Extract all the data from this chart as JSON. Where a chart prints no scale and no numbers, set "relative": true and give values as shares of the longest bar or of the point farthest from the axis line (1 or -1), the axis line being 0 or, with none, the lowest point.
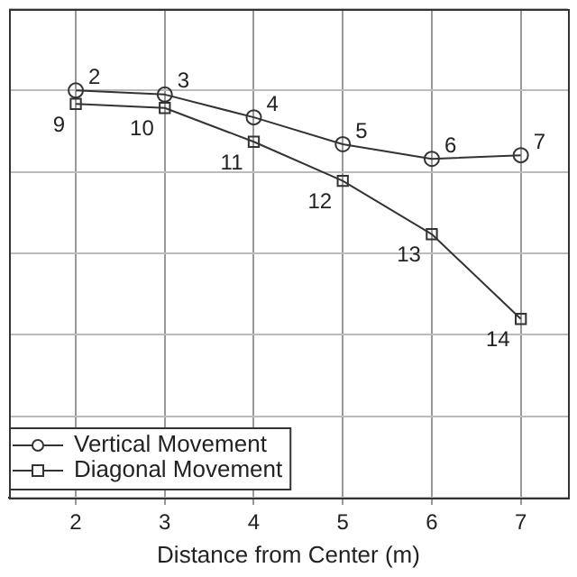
{
  "chart_data": {
    "type": "line",
    "xlabel": "Distance from Center (m)",
    "relative": true,
    "xlim": [
      1.25,
      7.53
    ],
    "xticks": [
      2,
      3,
      4,
      5,
      6,
      7
    ],
    "grid": true,
    "legend": "bottom left",
    "line_style": "solid",
    "series": [
      {
        "name": "Vertical Movement",
        "color": "#333333",
        "marker": "circle",
        "x": [
          2,
          3,
          4,
          5,
          6,
          7
        ],
        "values": [
          1,
          0.99,
          0.934,
          0.868,
          0.832,
          0.841
        ]
      },
      {
        "name": "Diagonal Movement",
        "color": "#333333",
        "marker": "square",
        "x": [
          2,
          3,
          4,
          5,
          6,
          7
        ],
        "values": [
          0.967,
          0.957,
          0.874,
          0.778,
          0.647,
          0.439
        ]
      }
    ],
    "annotations": [
      {
        "text": "2",
        "x": 2,
        "y": 1
      },
      {
        "text": "3",
        "x": 3,
        "y": 0.99
      },
      {
        "text": "4",
        "x": 4,
        "y": 0.934
      },
      {
        "text": "5",
        "x": 5,
        "y": 0.868
      },
      {
        "text": "6",
        "x": 6,
        "y": 0.832
      },
      {
        "text": "7",
        "x": 7,
        "y": 0.841
      },
      {
        "text": "9",
        "x": 2,
        "y": 0.967
      },
      {
        "text": "10",
        "x": 3,
        "y": 0.957
      },
      {
        "text": "11",
        "x": 4,
        "y": 0.874
      },
      {
        "text": "12",
        "x": 5,
        "y": 0.778
      },
      {
        "text": "13",
        "x": 6,
        "y": 0.647
      },
      {
        "text": "14",
        "x": 7,
        "y": 0.439
      }
    ]
  }
}
